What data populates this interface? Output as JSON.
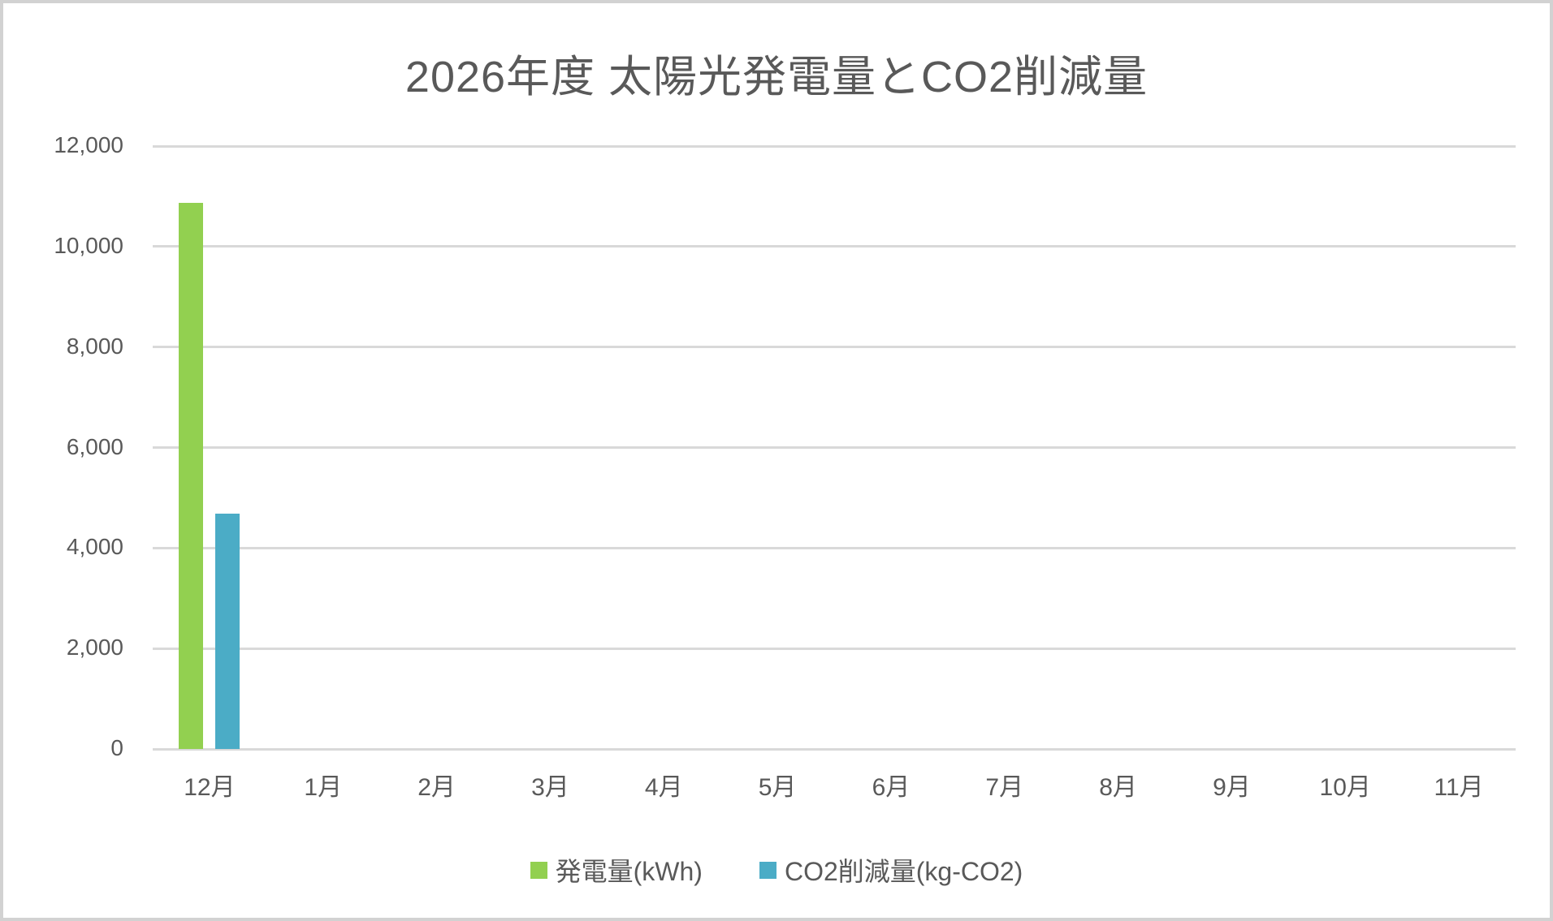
{
  "chart_data": {
    "type": "bar",
    "title": "2026年度 太陽光発電量とCO2削減量",
    "categories": [
      "12月",
      "1月",
      "2月",
      "3月",
      "4月",
      "5月",
      "6月",
      "7月",
      "8月",
      "9月",
      "10月",
      "11月"
    ],
    "series": [
      {
        "name": "発電量(kWh)",
        "color": "#92D050",
        "values": [
          10870,
          0,
          0,
          0,
          0,
          0,
          0,
          0,
          0,
          0,
          0,
          0
        ]
      },
      {
        "name": "CO2削減量(kg-CO2)",
        "color": "#4BACC6",
        "values": [
          4680,
          0,
          0,
          0,
          0,
          0,
          0,
          0,
          0,
          0,
          0,
          0
        ]
      }
    ],
    "xlabel": "",
    "ylabel": "",
    "ylim": [
      0,
      12000
    ],
    "y_tick_step": 2000,
    "y_tick_labels": [
      "0",
      "2,000",
      "4,000",
      "6,000",
      "8,000",
      "10,000",
      "12,000"
    ],
    "grid": true,
    "legend_position": "bottom",
    "colors": {
      "text": "#595959",
      "gridline": "#D9D9D9",
      "frame_border": "#D2D2D2",
      "background": "#FFFFFF"
    }
  }
}
